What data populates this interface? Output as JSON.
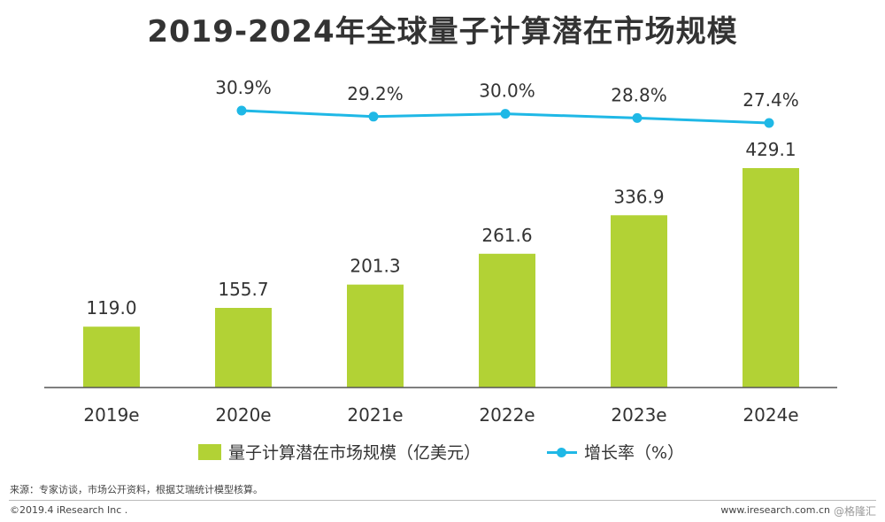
{
  "title": "2019-2024年全球量子计算潜在市场规模",
  "legend": {
    "bar_label": "量子计算潜在市场规模（亿美元）",
    "line_label": "增长率（%）"
  },
  "colors": {
    "bar": "#b2d235",
    "line": "#1fb8e6",
    "axis": "#555555"
  },
  "chart_data": {
    "type": "bar",
    "categories": [
      "2019e",
      "2020e",
      "2021e",
      "2022e",
      "2023e",
      "2024e"
    ],
    "series": [
      {
        "name": "量子计算潜在市场规模（亿美元）",
        "type": "bar",
        "values": [
          119.0,
          155.7,
          201.3,
          261.6,
          336.9,
          429.1
        ],
        "labels": [
          "119.0",
          "155.7",
          "201.3",
          "261.6",
          "336.9",
          "429.1"
        ]
      },
      {
        "name": "增长率（%）",
        "type": "line",
        "values": [
          null,
          30.9,
          29.2,
          30.0,
          28.8,
          27.4
        ],
        "labels": [
          null,
          "30.9%",
          "29.2%",
          "30.0%",
          "28.8%",
          "27.4%"
        ]
      }
    ],
    "legend_position": "bottom",
    "grid": false
  },
  "footer": {
    "source": "来源：专家访谈，市场公开资料，根据艾瑞统计模型核算。",
    "copyright": "©2019.4 iResearch Inc .",
    "website": "www.iresearch.com.cn",
    "watermark": "@格隆汇"
  }
}
